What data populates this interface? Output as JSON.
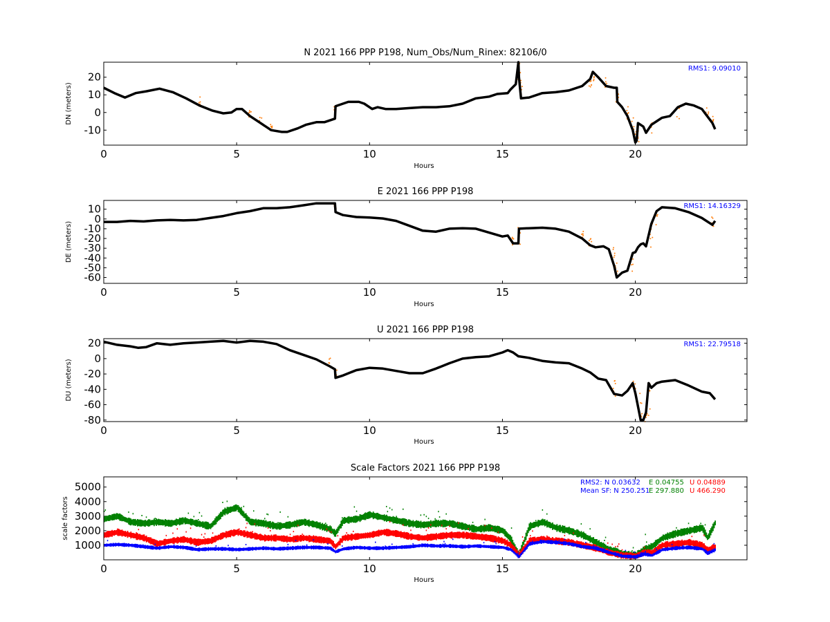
{
  "colors": {
    "trace": "#000000",
    "outlier": "#ff7f0e",
    "N": "#0000ff",
    "E": "#008000",
    "U": "#ff0000",
    "note": "#0000ff"
  },
  "chart_data": [
    {
      "type": "line",
      "title": "N 2021 166 PPP  P198, Num_Obs/Num_Rinex: 82106/0",
      "xlabel": "Hours",
      "ylabel": "DN (meters)",
      "xlim": [
        0,
        24.2
      ],
      "ylim": [
        -18.5,
        28.5
      ],
      "xticks": [
        0,
        5,
        10,
        15,
        20
      ],
      "yticks": [
        -10,
        0,
        10,
        20
      ],
      "annotations": [
        {
          "text": "RMS1:  9.09010",
          "color": "#0000ff"
        }
      ],
      "series": [
        {
          "x": [
            0,
            0.4,
            0.8,
            1.2,
            1.6,
            2.1,
            2.6,
            3.1,
            3.6,
            4.1,
            4.5,
            4.8,
            5.0,
            5.2,
            5.5,
            5.9,
            6.3,
            6.7,
            6.9,
            7.3,
            7.6,
            8.0,
            8.3,
            8.7,
            8.72,
            8.8,
            9.2,
            9.6,
            9.8,
            10.1,
            10.3,
            10.6,
            11.0,
            11.5,
            12.0,
            12.5,
            13.0,
            13.5,
            14.0,
            14.5,
            14.8,
            15.2,
            15.3,
            15.5,
            15.6,
            15.62,
            15.7,
            16.0,
            16.5,
            17.0,
            17.5,
            18.0,
            18.3,
            18.4,
            18.6,
            18.9,
            19.2,
            19.3,
            19.32,
            19.5,
            19.7,
            19.9,
            20.0,
            20.05,
            20.1,
            20.3,
            20.4,
            20.6,
            20.8,
            21.0,
            21.3,
            21.6,
            21.9,
            22.2,
            22.5,
            22.7,
            22.9,
            23.0
          ],
          "y": [
            14,
            11,
            8.5,
            11,
            12,
            13.5,
            11.5,
            8,
            4,
            1,
            -0.5,
            0,
            2,
            2,
            -2,
            -6,
            -10,
            -11,
            -11,
            -9,
            -7,
            -5.5,
            -5.5,
            -3.5,
            3.5,
            4,
            6,
            6,
            5,
            2,
            3,
            2,
            2,
            2.5,
            3,
            3,
            3.5,
            5,
            8,
            9,
            10.5,
            11,
            13,
            16,
            28.5,
            20,
            8,
            8.5,
            11,
            11.5,
            12.5,
            15,
            19,
            23,
            20,
            15,
            14,
            14,
            6,
            3,
            -2,
            -10,
            -17,
            -16,
            -6,
            -8,
            -11.5,
            -7,
            -5,
            -3,
            -2,
            3,
            5,
            4,
            2,
            -2,
            -6,
            -9.5
          ]
        }
      ]
    },
    {
      "type": "line",
      "title": "E 2021 166 PPP  P198",
      "xlabel": "Hours",
      "ylabel": "DE (meters)",
      "xlim": [
        0,
        24.2
      ],
      "ylim": [
        -66,
        19
      ],
      "xticks": [
        0,
        5,
        10,
        15,
        20
      ],
      "yticks": [
        -60,
        -50,
        -40,
        -30,
        -20,
        -10,
        0,
        10
      ],
      "annotations": [
        {
          "text": "RMS1: 14.16329",
          "color": "#0000ff"
        }
      ],
      "series": [
        {
          "x": [
            0,
            0.5,
            1.0,
            1.5,
            2.0,
            2.5,
            3.0,
            3.5,
            4.0,
            4.5,
            5.0,
            5.5,
            6.0,
            6.5,
            7.0,
            7.5,
            8.0,
            8.5,
            8.7,
            8.72,
            9.0,
            9.5,
            10.0,
            10.5,
            11.0,
            11.5,
            12.0,
            12.5,
            13.0,
            13.5,
            14.0,
            14.5,
            15.0,
            15.2,
            15.4,
            15.6,
            15.62,
            16.0,
            16.5,
            17.0,
            17.5,
            18.0,
            18.3,
            18.5,
            18.8,
            19.0,
            19.2,
            19.3,
            19.5,
            19.7,
            19.9,
            20.0,
            20.1,
            20.2,
            20.3,
            20.4,
            20.6,
            20.8,
            21.0,
            21.5,
            22.0,
            22.5,
            22.9,
            23.0
          ],
          "y": [
            -3,
            -3,
            -2,
            -2.5,
            -1.5,
            -1,
            -1.5,
            -1,
            1,
            3,
            6,
            8,
            11,
            11,
            12,
            14,
            16,
            16,
            16,
            7,
            4,
            2,
            1.5,
            0.5,
            -2,
            -7,
            -12,
            -13,
            -10,
            -9.5,
            -10,
            -14,
            -18,
            -17,
            -25,
            -25,
            -10,
            -9.5,
            -9,
            -10,
            -13,
            -20,
            -27,
            -29,
            -28,
            -31,
            -48,
            -60,
            -55,
            -53,
            -35,
            -34,
            -29,
            -26,
            -25,
            -28,
            -5,
            8,
            12,
            11,
            7,
            1,
            -6,
            -2
          ]
        }
      ]
    },
    {
      "type": "line",
      "title": "U 2021 166 PPP  P198",
      "xlabel": "Hours",
      "ylabel": "DU (meters)",
      "xlim": [
        0,
        24.2
      ],
      "ylim": [
        -82,
        26
      ],
      "xticks": [
        0,
        5,
        10,
        15,
        20
      ],
      "yticks": [
        -80,
        -60,
        -40,
        -20,
        0,
        20
      ],
      "annotations": [
        {
          "text": "RMS1: 22.79518",
          "color": "#0000ff"
        }
      ],
      "series": [
        {
          "x": [
            0,
            0.5,
            1.0,
            1.3,
            1.6,
            2.0,
            2.5,
            3.0,
            3.5,
            4.0,
            4.5,
            5.0,
            5.5,
            6.0,
            6.5,
            7.0,
            7.5,
            8.0,
            8.5,
            8.7,
            8.72,
            9.0,
            9.5,
            10.0,
            10.5,
            11.0,
            11.5,
            12.0,
            12.5,
            13.0,
            13.5,
            14.0,
            14.5,
            15.0,
            15.2,
            15.4,
            15.6,
            15.62,
            16.0,
            16.5,
            17.0,
            17.5,
            18.0,
            18.3,
            18.6,
            18.9,
            19.2,
            19.5,
            19.7,
            19.9,
            20.0,
            20.2,
            20.3,
            20.4,
            20.5,
            20.6,
            20.8,
            21.0,
            21.5,
            22.0,
            22.5,
            22.8,
            23.0
          ],
          "y": [
            22,
            18,
            16,
            14,
            15,
            20,
            18,
            20,
            21,
            22,
            23,
            21,
            23,
            22,
            19,
            11,
            5,
            -1,
            -10,
            -14,
            -25,
            -22,
            -15,
            -12,
            -13,
            -16,
            -19,
            -19,
            -13,
            -6,
            0,
            2,
            3,
            8,
            11,
            8,
            3,
            3,
            1,
            -3,
            -5,
            -6,
            -13,
            -18,
            -26,
            -28,
            -46,
            -48,
            -42,
            -32,
            -45,
            -80,
            -80,
            -70,
            -32,
            -38,
            -32,
            -30,
            -28,
            -35,
            -43,
            -45,
            -53
          ]
        }
      ]
    },
    {
      "type": "scatter",
      "title": "Scale Factors 2021 166 PPP  P198",
      "xlabel": "Hours",
      "ylabel": "scale factors",
      "xlim": [
        0,
        24.2
      ],
      "ylim": [
        0,
        5700
      ],
      "xticks": [
        0,
        5,
        10,
        15,
        20
      ],
      "yticks": [
        1000,
        2000,
        3000,
        4000,
        5000
      ],
      "annotations": [
        {
          "text": "RMS2: N  0.03632",
          "color": "#0000ff"
        },
        {
          "text": "E  0.04755",
          "color": "#008000"
        },
        {
          "text": "U  0.04889",
          "color": "#ff0000"
        },
        {
          "text": "Mean SF: N 250.251",
          "color": "#0000ff"
        },
        {
          "text": "E 297.880",
          "color": "#008000"
        },
        {
          "text": "U 466.290",
          "color": "#ff0000"
        }
      ],
      "series": [
        {
          "name": "N",
          "x": [
            0,
            0.5,
            1.0,
            1.5,
            2.0,
            2.5,
            3.0,
            3.5,
            4.0,
            4.5,
            5.0,
            5.5,
            6.0,
            6.5,
            7.0,
            7.5,
            8.0,
            8.5,
            8.7,
            9.0,
            9.5,
            10.0,
            10.5,
            11.0,
            11.5,
            12.0,
            12.5,
            13.0,
            13.5,
            14.0,
            14.5,
            15.0,
            15.3,
            15.6,
            16.0,
            16.5,
            17.0,
            17.5,
            18.0,
            18.5,
            19.0,
            19.5,
            20.0,
            20.3,
            20.6,
            21.0,
            21.5,
            22.0,
            22.5,
            22.7,
            23.0
          ],
          "y": [
            1000,
            1050,
            1000,
            900,
            800,
            900,
            850,
            700,
            750,
            750,
            700,
            750,
            800,
            750,
            800,
            850,
            850,
            800,
            550,
            750,
            850,
            800,
            800,
            850,
            900,
            1000,
            950,
            950,
            900,
            950,
            900,
            850,
            700,
            200,
            1100,
            1250,
            1200,
            1100,
            900,
            800,
            500,
            250,
            200,
            400,
            300,
            700,
            800,
            850,
            750,
            450,
            700
          ]
        },
        {
          "name": "E",
          "x": [
            0,
            0.5,
            1.0,
            1.5,
            2.0,
            2.5,
            3.0,
            3.5,
            4.0,
            4.5,
            5.0,
            5.5,
            6.0,
            6.5,
            7.0,
            7.5,
            8.0,
            8.5,
            8.7,
            9.0,
            9.5,
            10.0,
            10.5,
            11.0,
            11.5,
            12.0,
            12.5,
            13.0,
            13.5,
            14.0,
            14.5,
            15.0,
            15.3,
            15.6,
            16.0,
            16.5,
            17.0,
            17.5,
            18.0,
            18.5,
            19.0,
            19.5,
            20.0,
            20.3,
            20.6,
            21.0,
            21.5,
            22.0,
            22.5,
            22.7,
            23.0
          ],
          "y": [
            2800,
            3000,
            2600,
            2500,
            2600,
            2500,
            2700,
            2500,
            2300,
            3300,
            3600,
            2600,
            2500,
            2300,
            2400,
            2600,
            2400,
            2100,
            1800,
            2700,
            2800,
            3100,
            2900,
            2700,
            2500,
            2400,
            2500,
            2500,
            2300,
            2100,
            2200,
            2000,
            1400,
            300,
            2300,
            2600,
            2200,
            2000,
            1700,
            1200,
            700,
            400,
            300,
            700,
            900,
            1500,
            1800,
            2000,
            2200,
            1500,
            2600
          ]
        },
        {
          "name": "U",
          "x": [
            0,
            0.5,
            1.0,
            1.5,
            2.0,
            2.5,
            3.0,
            3.5,
            4.0,
            4.5,
            5.0,
            5.5,
            6.0,
            6.5,
            7.0,
            7.5,
            8.0,
            8.5,
            8.7,
            9.0,
            9.5,
            10.0,
            10.5,
            11.0,
            11.5,
            12.0,
            12.5,
            13.0,
            13.5,
            14.0,
            14.5,
            15.0,
            15.3,
            15.6,
            16.0,
            16.5,
            17.0,
            17.5,
            18.0,
            18.5,
            19.0,
            19.5,
            20.0,
            20.3,
            20.6,
            21.0,
            21.5,
            22.0,
            22.5,
            22.7,
            23.0
          ],
          "y": [
            1700,
            1900,
            1700,
            1500,
            1100,
            1300,
            1400,
            1200,
            1300,
            1700,
            1900,
            1700,
            1500,
            1500,
            1400,
            1500,
            1400,
            1300,
            900,
            1500,
            1600,
            1700,
            1900,
            1800,
            1600,
            1500,
            1600,
            1700,
            1700,
            1600,
            1500,
            1300,
            1000,
            300,
            1300,
            1400,
            1300,
            1200,
            1000,
            800,
            500,
            300,
            250,
            500,
            500,
            1000,
            1100,
            1200,
            1000,
            700,
            900
          ]
        }
      ]
    }
  ]
}
